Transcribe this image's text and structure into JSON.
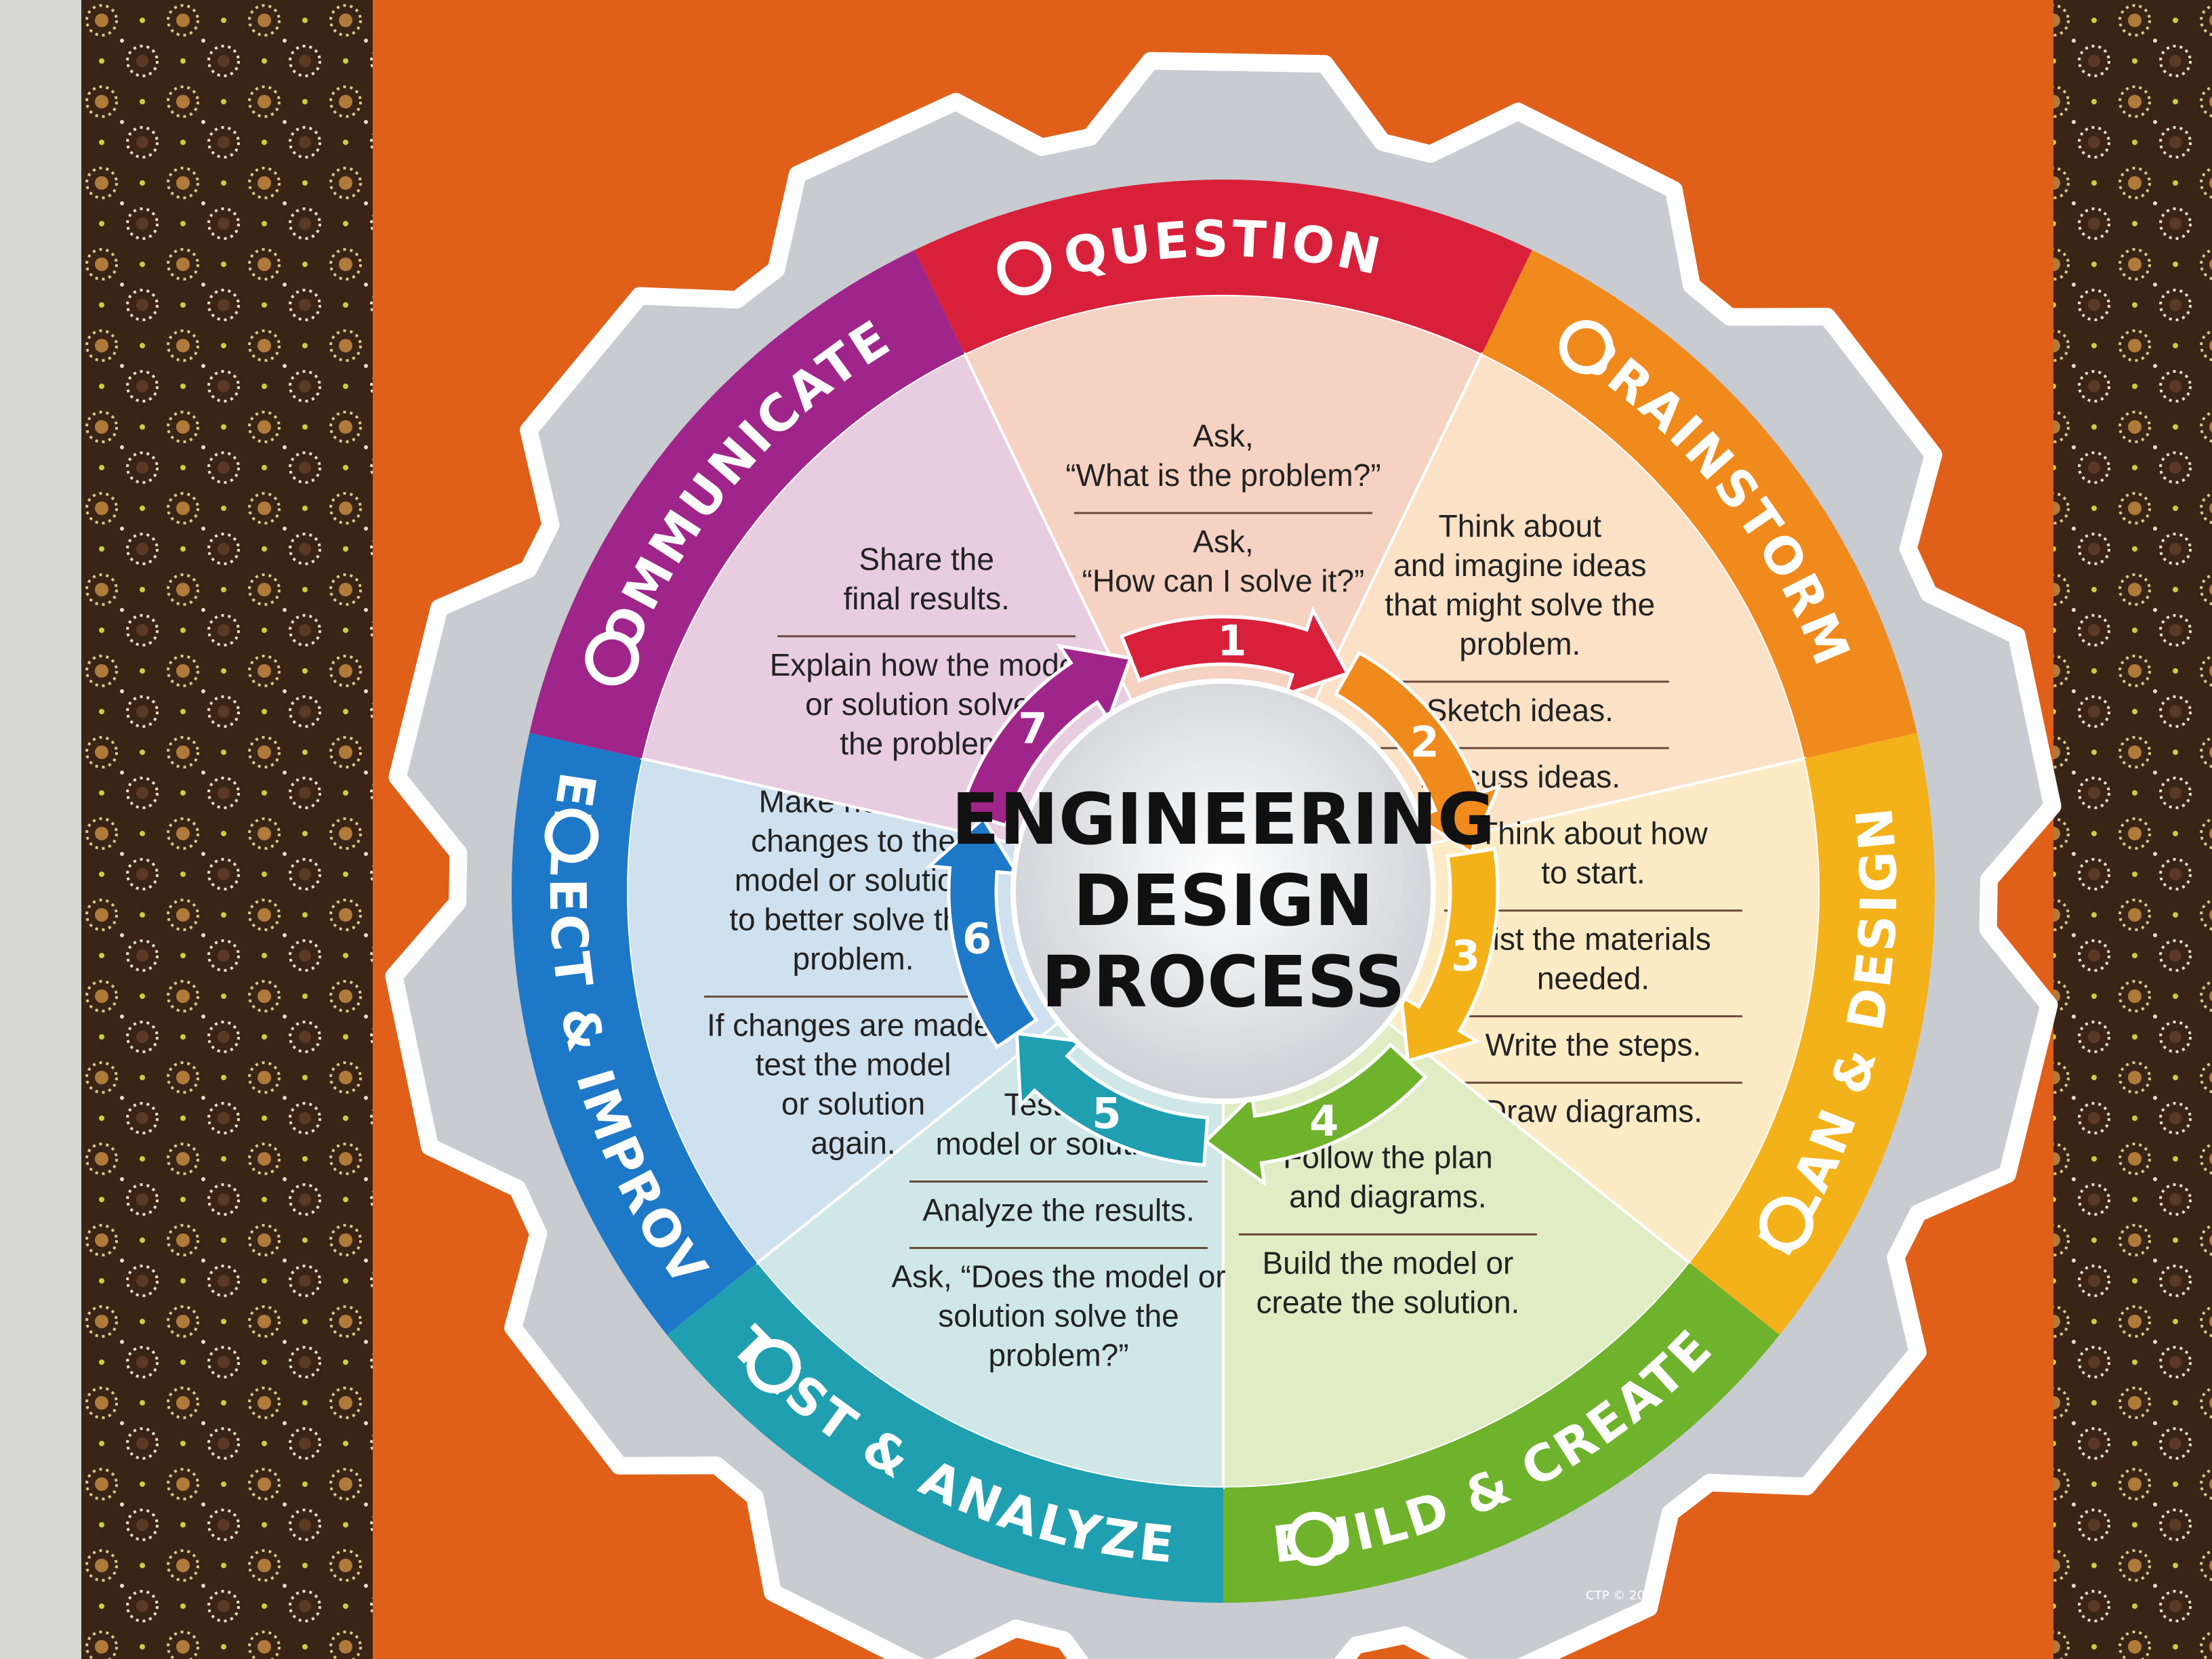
{
  "poster": {
    "title_lines": [
      "ENGINEERING",
      "DESIGN",
      "PROCESS"
    ],
    "copyright": "CTP © 2017"
  },
  "colors": {
    "wall": "#d8d8d2",
    "board": "#e0601a",
    "border_dark": "#3a2416",
    "gear": "#c8cbd0",
    "gear_edge": "#ffffff"
  },
  "segments": [
    {
      "step": "1",
      "title": "QUESTION",
      "icon": "question-bubble-icon",
      "color": "#d8203a",
      "tint": "#f6d2c2",
      "blocks": [
        [
          "Ask,",
          "“What is the problem?”"
        ],
        [
          "Ask,",
          "“How can I solve it?”"
        ]
      ]
    },
    {
      "step": "2",
      "title": "BRAINSTORM",
      "icon": "lightbulb-icon",
      "color": "#f08a1c",
      "tint": "#fbe1c6",
      "blocks": [
        [
          "Think about",
          "and imagine ideas",
          "that might solve the",
          "problem."
        ],
        [
          "Sketch ideas."
        ],
        [
          "Discuss ideas."
        ]
      ]
    },
    {
      "step": "3",
      "title": "PLAN & DESIGN",
      "icon": "pencil-icon",
      "color": "#f4b21a",
      "tint": "#fcebc4",
      "blocks": [
        [
          "Think about how",
          "to start."
        ],
        [
          "List the materials",
          "needed."
        ],
        [
          "Write the steps."
        ],
        [
          "Draw diagrams."
        ]
      ]
    },
    {
      "step": "4",
      "title": "BUILD & CREATE",
      "icon": "puzzle-piece-icon",
      "color": "#6fb22c",
      "tint": "#e0ecc4",
      "blocks": [
        [
          "Follow the plan",
          "and diagrams."
        ],
        [
          "Build the model or",
          "create the solution."
        ]
      ]
    },
    {
      "step": "5",
      "title": "TEST & ANALYZE",
      "icon": "magnifier-check-icon",
      "color": "#1f9fb0",
      "tint": "#cfe7e6",
      "blocks": [
        [
          "Test the",
          "model or solution."
        ],
        [
          "Analyze the results."
        ],
        [
          "Ask, “Does the model or",
          "solution solve the",
          "problem?”"
        ]
      ]
    },
    {
      "step": "6",
      "title": "REFLECT & IMPROVE",
      "icon": "wrench-icon",
      "color": "#1e78c8",
      "tint": "#cfe0ef",
      "blocks": [
        [
          "Make needed",
          "changes to the",
          "model or solution",
          "to better solve the",
          "problem."
        ],
        [
          "If changes are made,",
          "test the model",
          "or solution",
          "again."
        ]
      ]
    },
    {
      "step": "7",
      "title": "COMMUNICATE",
      "icon": "piggy-bank-icon",
      "color": "#a0258a",
      "tint": "#e8cde0",
      "blocks": [
        [
          "Share the",
          "final results."
        ],
        [
          "Explain how the model",
          "or solution solved",
          "the problem."
        ]
      ]
    }
  ]
}
